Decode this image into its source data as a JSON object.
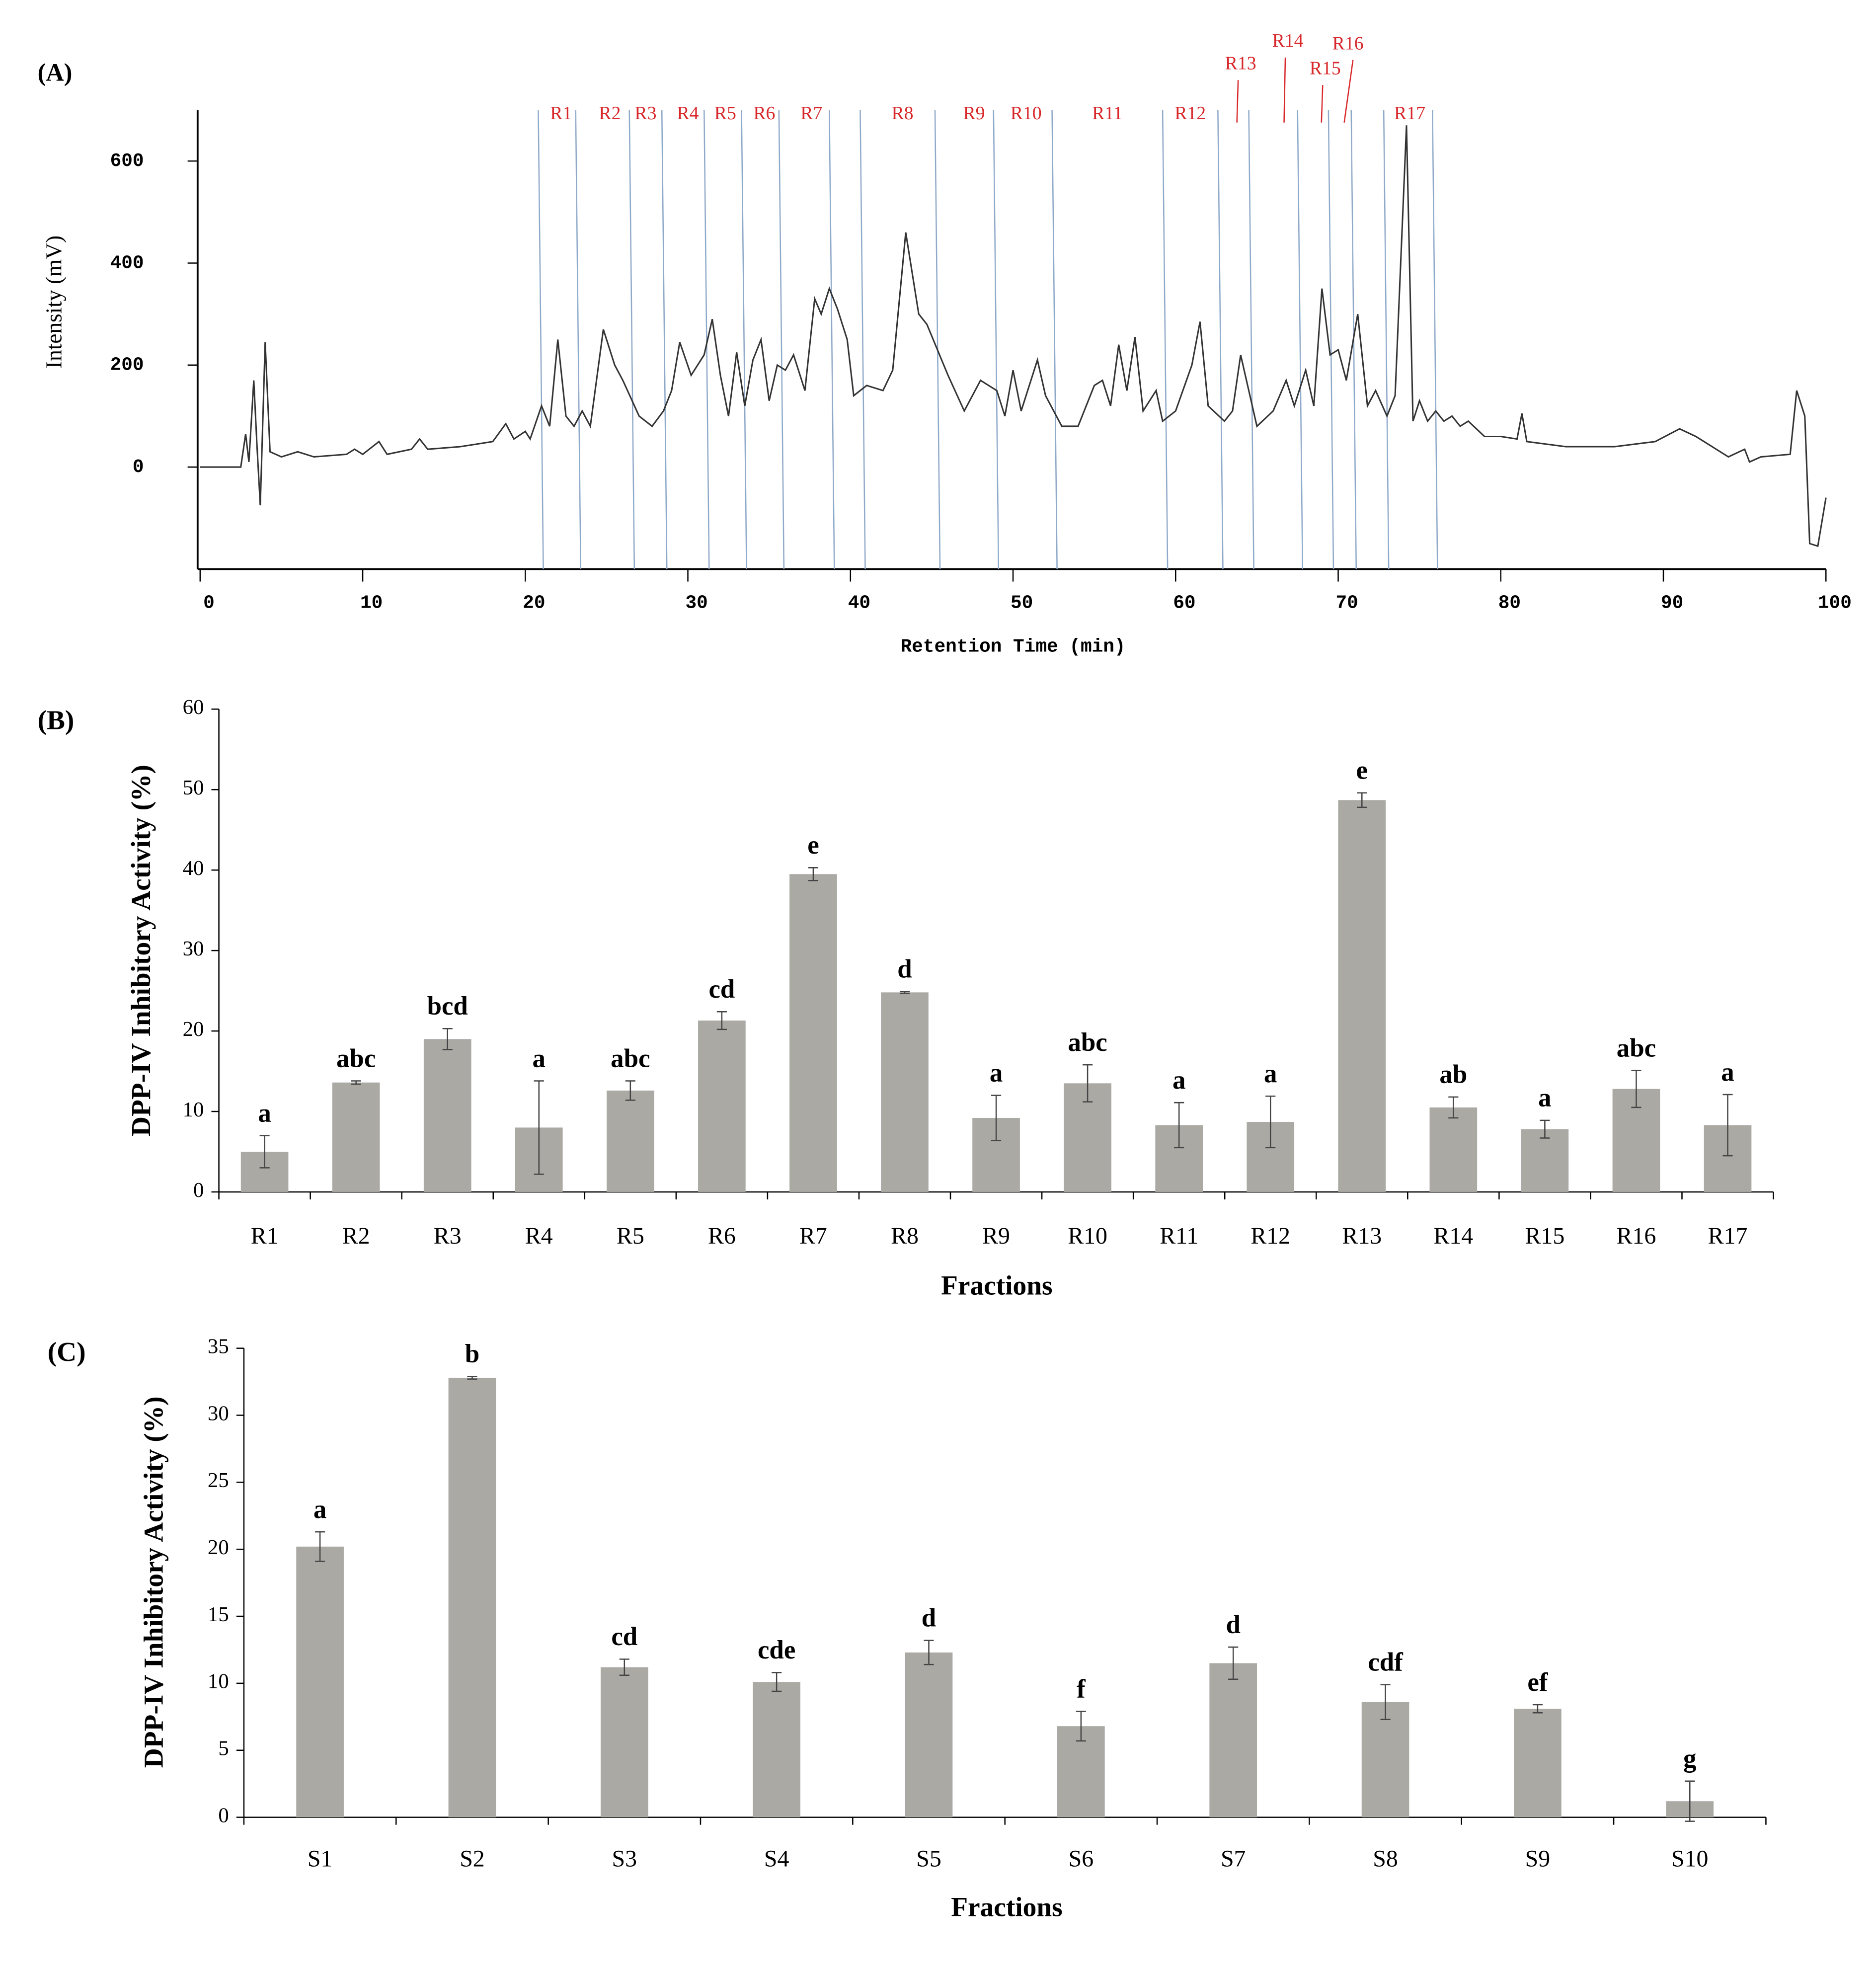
{
  "chart_data": [
    {
      "type": "line",
      "panel_label": "(A)",
      "xlabel": "Retention Time (min)",
      "ylabel": "Intensity (mV)",
      "xlim": [
        0,
        100
      ],
      "xticks": [
        0,
        10,
        20,
        30,
        40,
        50,
        60,
        70,
        80,
        90,
        100
      ],
      "ylim": [
        -200,
        700
      ],
      "yticks": [
        0,
        200,
        400,
        600
      ],
      "series": [
        {
          "color": "#333333",
          "x": [
            0,
            2.5,
            2.8,
            3.0,
            3.3,
            3.5,
            3.7,
            4.0,
            4.3,
            5,
            6,
            7,
            9,
            9.5,
            10,
            11,
            11.5,
            13,
            13.5,
            14,
            16,
            17,
            18,
            18.8,
            19.3,
            20,
            20.3,
            21,
            21.5,
            22,
            22.5,
            23,
            23.5,
            24,
            24.8,
            25.5,
            26,
            27,
            27.8,
            28.5,
            29,
            29.5,
            30.2,
            31,
            31.5,
            32,
            32.5,
            33,
            33.5,
            34,
            34.5,
            35,
            35.5,
            36,
            36.5,
            37.2,
            37.8,
            38.2,
            38.7,
            39.2,
            39.8,
            40.2,
            41,
            42,
            42.6,
            43.4,
            44.2,
            44.7,
            46,
            47,
            48,
            49,
            49.5,
            50,
            50.5,
            51.5,
            52,
            53,
            54,
            55,
            55.5,
            56,
            56.5,
            57,
            57.5,
            58,
            58.8,
            59.2,
            60,
            61,
            61.5,
            62,
            63,
            63.5,
            64,
            64.5,
            65,
            66,
            66.8,
            67.3,
            68,
            68.5,
            69,
            69.5,
            70,
            70.5,
            71.2,
            71.8,
            72.3,
            73,
            73.5,
            74.2,
            74.6,
            75,
            75.5,
            76,
            76.5,
            77,
            77.5,
            78,
            79,
            80,
            81,
            81.3,
            81.6,
            84,
            87,
            89.5,
            91,
            92,
            94,
            95,
            95.3,
            96,
            97.8,
            98.2,
            98.7,
            99.0,
            99.5,
            100
          ],
          "values": [
            0,
            0,
            65,
            10,
            170,
            40,
            -75,
            245,
            30,
            20,
            30,
            20,
            25,
            35,
            25,
            50,
            25,
            35,
            55,
            35,
            40,
            45,
            50,
            85,
            55,
            70,
            55,
            120,
            80,
            250,
            100,
            80,
            110,
            80,
            270,
            200,
            170,
            100,
            80,
            110,
            150,
            245,
            180,
            220,
            290,
            180,
            100,
            225,
            120,
            210,
            250,
            130,
            200,
            190,
            220,
            150,
            330,
            300,
            350,
            310,
            250,
            140,
            160,
            150,
            190,
            460,
            300,
            280,
            180,
            110,
            170,
            150,
            100,
            190,
            110,
            210,
            140,
            80,
            80,
            160,
            170,
            120,
            240,
            150,
            255,
            110,
            150,
            90,
            110,
            200,
            285,
            120,
            90,
            110,
            220,
            150,
            80,
            110,
            170,
            120,
            190,
            120,
            350,
            220,
            230,
            170,
            300,
            120,
            150,
            100,
            140,
            670,
            90,
            130,
            90,
            110,
            90,
            100,
            80,
            90,
            60,
            60,
            55,
            105,
            50,
            40,
            40,
            50,
            75,
            60,
            20,
            35,
            10,
            20,
            25,
            150,
            100,
            -150,
            -155,
            -60
          ]
        }
      ],
      "boundaries": [
        20.8,
        23.1,
        26.4,
        28.4,
        31,
        33.3,
        35.6,
        38.7,
        40.6,
        45.2,
        48.8,
        52.4,
        59.2,
        62.6,
        64.5,
        67.5,
        69.4,
        70.8,
        72.8,
        75.8
      ],
      "boundary_color": "#8fa9c9",
      "fractions": [
        {
          "label": "R1",
          "x": 22.2
        },
        {
          "label": "R2",
          "x": 25.2
        },
        {
          "label": "R3",
          "x": 27.4
        },
        {
          "label": "R4",
          "x": 30
        },
        {
          "label": "R5",
          "x": 32.3
        },
        {
          "label": "R6",
          "x": 34.7
        },
        {
          "label": "R7",
          "x": 37.6
        },
        {
          "label": "R8",
          "x": 43.2
        },
        {
          "label": "R9",
          "x": 47.6
        },
        {
          "label": "R10",
          "x": 50.8
        },
        {
          "label": "R11",
          "x": 55.8
        },
        {
          "label": "R12",
          "x": 60.9
        },
        {
          "label": "R13",
          "x": 64
        },
        {
          "label": "R14",
          "x": 66.9
        },
        {
          "label": "R15",
          "x": 69.2
        },
        {
          "label": "R16",
          "x": 70.6
        },
        {
          "label": "R17",
          "x": 74.4
        }
      ]
    },
    {
      "type": "bar",
      "panel_label": "(B)",
      "xlabel": "Fractions",
      "ylabel": "DPP-IV Inhibitory Activity (%)",
      "ylim": [
        0,
        60
      ],
      "yticks": [
        0,
        10,
        20,
        30,
        40,
        50,
        60
      ],
      "color": "#aaa9a4",
      "categories": [
        "R1",
        "R2",
        "R3",
        "R4",
        "R5",
        "R6",
        "R7",
        "R8",
        "R9",
        "R10",
        "R11",
        "R12",
        "R13",
        "R14",
        "R15",
        "R16",
        "R17"
      ],
      "values": [
        5,
        13.6,
        19,
        8,
        12.6,
        21.3,
        39.5,
        24.8,
        9.2,
        13.5,
        8.3,
        8.7,
        48.7,
        10.5,
        7.8,
        12.8,
        8.3
      ],
      "errors": [
        2,
        0.2,
        1.3,
        5.8,
        1.2,
        1.1,
        0.8,
        0.1,
        2.8,
        2.3,
        2.8,
        3.2,
        0.9,
        1.3,
        1.1,
        2.3,
        3.8
      ],
      "letters": [
        "a",
        "abc",
        "bcd",
        "a",
        "abc",
        "cd",
        "e",
        "d",
        "a",
        "abc",
        "a",
        "a",
        "e",
        "ab",
        "a",
        "abc",
        "a"
      ]
    },
    {
      "type": "bar",
      "panel_label": "(C)",
      "xlabel": "Fractions",
      "ylabel": "DPP-IV Inhibitory Activity (%)",
      "ylim": [
        0,
        35
      ],
      "yticks": [
        0,
        5,
        10,
        15,
        20,
        25,
        30,
        35
      ],
      "color": "#aaa9a4",
      "categories": [
        "S1",
        "S2",
        "S3",
        "S4",
        "S5",
        "S6",
        "S7",
        "S8",
        "S9",
        "S10"
      ],
      "values": [
        20.2,
        32.8,
        11.2,
        10.1,
        12.3,
        6.8,
        11.5,
        8.6,
        8.1,
        1.2
      ],
      "errors": [
        1.1,
        0.1,
        0.6,
        0.7,
        0.9,
        1.1,
        1.2,
        1.3,
        0.3,
        1.5
      ],
      "letters": [
        "a",
        "b",
        "cd",
        "cde",
        "d",
        "f",
        "d",
        "cdf",
        "ef",
        "g"
      ]
    }
  ]
}
